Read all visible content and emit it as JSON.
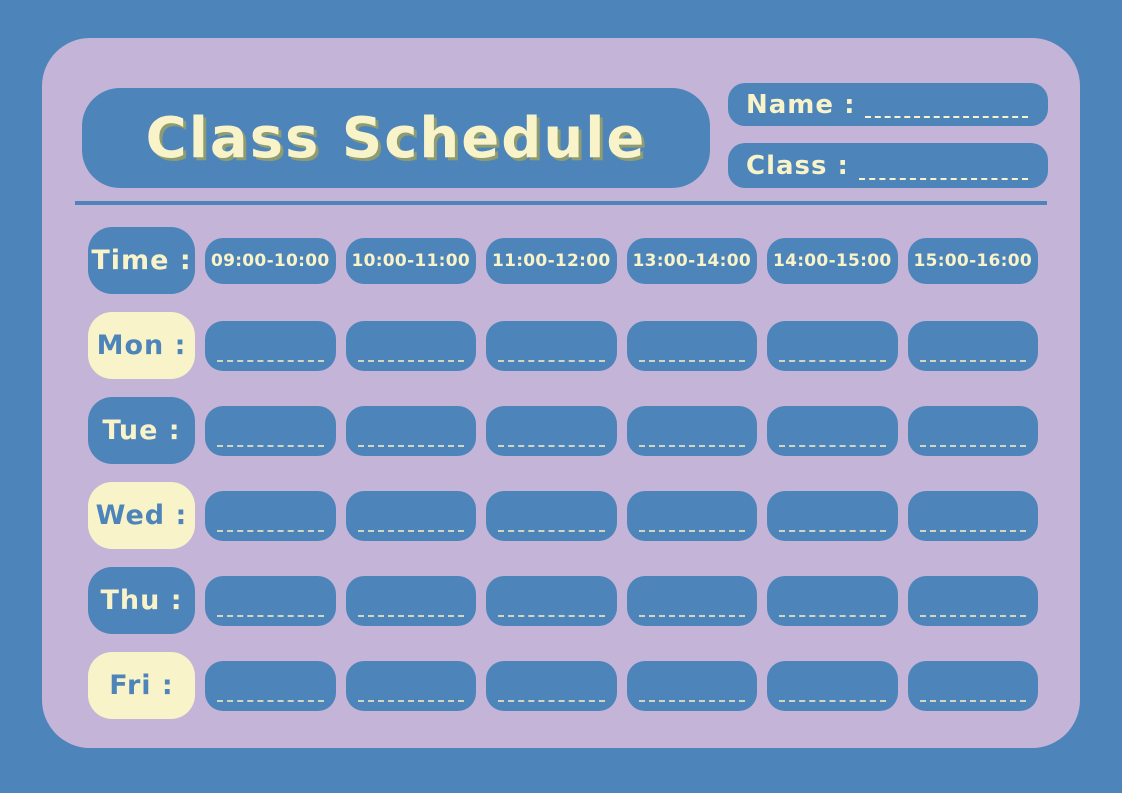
{
  "palette": {
    "background_blue": "#4d85ba",
    "card_lavender": "#c4b4d8",
    "pill_blue": "#4d85ba",
    "cream": "#f8f3c9",
    "title_shadow_olive": "#8f9c72",
    "write_line_dash": "#e9e5c4"
  },
  "header": {
    "title": "Class Schedule",
    "name_label": "Name :",
    "class_label": "Class :"
  },
  "schedule": {
    "time_header": {
      "label": "Time :",
      "slots": [
        "09:00-10:00",
        "10:00-11:00",
        "11:00-12:00",
        "13:00-14:00",
        "14:00-15:00",
        "15:00-16:00"
      ]
    },
    "days": [
      {
        "label": "Mon :",
        "variant": "cream"
      },
      {
        "label": "Tue :",
        "variant": "blue"
      },
      {
        "label": "Wed :",
        "variant": "cream"
      },
      {
        "label": "Thu :",
        "variant": "blue"
      },
      {
        "label": "Fri :",
        "variant": "cream"
      }
    ]
  }
}
